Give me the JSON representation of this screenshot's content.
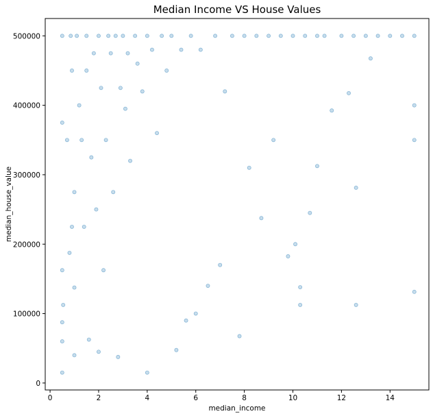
{
  "chart_data": {
    "type": "scatter",
    "title": "Median Income VS House Values",
    "xlabel": "median_income",
    "ylabel": "median_house_value",
    "xlim": [
      -0.2,
      15.6
    ],
    "ylim": [
      -10000,
      525000
    ],
    "xticks": [
      0,
      2,
      4,
      6,
      8,
      10,
      12,
      14
    ],
    "yticks": [
      0,
      100000,
      200000,
      300000,
      400000,
      500000
    ],
    "xtick_labels": [
      "0",
      "2",
      "4",
      "6",
      "8",
      "10",
      "12",
      "14"
    ],
    "ytick_labels": [
      "0",
      "100000",
      "200000",
      "300000",
      "400000",
      "500000"
    ],
    "grid": false,
    "marker_color": "#1f77b4",
    "marker_alpha": 0.25,
    "series": [
      {
        "values": [
          [
            0.5,
            15000
          ],
          [
            0.5,
            60000
          ],
          [
            0.5,
            87500
          ],
          [
            0.5,
            162500
          ],
          [
            0.5,
            375000
          ],
          [
            0.5,
            500001
          ],
          [
            0.54,
            112500
          ],
          [
            0.7,
            350000
          ],
          [
            0.8,
            187500
          ],
          [
            0.85,
            500001
          ],
          [
            0.9,
            225000
          ],
          [
            0.9,
            450000
          ],
          [
            1.0,
            40000
          ],
          [
            1.0,
            137500
          ],
          [
            1.0,
            275000
          ],
          [
            1.1,
            500001
          ],
          [
            1.2,
            400000
          ],
          [
            1.3,
            350000
          ],
          [
            1.4,
            225000
          ],
          [
            1.5,
            450000
          ],
          [
            1.5,
            500001
          ],
          [
            1.6,
            62500
          ],
          [
            1.7,
            325000
          ],
          [
            1.8,
            475000
          ],
          [
            1.9,
            250000
          ],
          [
            2.0,
            45000
          ],
          [
            2.0,
            500001
          ],
          [
            2.1,
            425000
          ],
          [
            2.2,
            162500
          ],
          [
            2.3,
            350000
          ],
          [
            2.4,
            500001
          ],
          [
            2.5,
            475000
          ],
          [
            2.6,
            275000
          ],
          [
            2.7,
            500001
          ],
          [
            2.8,
            37500
          ],
          [
            2.9,
            425000
          ],
          [
            3.0,
            500001
          ],
          [
            3.1,
            395000
          ],
          [
            3.2,
            475000
          ],
          [
            3.3,
            320000
          ],
          [
            3.5,
            500001
          ],
          [
            3.6,
            460000
          ],
          [
            3.8,
            420000
          ],
          [
            4.0,
            15000
          ],
          [
            4.0,
            500001
          ],
          [
            4.2,
            480000
          ],
          [
            4.4,
            360000
          ],
          [
            4.6,
            500001
          ],
          [
            4.8,
            450000
          ],
          [
            5.0,
            500001
          ],
          [
            5.2,
            47500
          ],
          [
            5.4,
            480000
          ],
          [
            5.6,
            90000
          ],
          [
            5.8,
            500001
          ],
          [
            6.0,
            100000
          ],
          [
            6.2,
            480000
          ],
          [
            6.5,
            140000
          ],
          [
            6.8,
            500001
          ],
          [
            7.0,
            170000
          ],
          [
            7.2,
            420000
          ],
          [
            7.5,
            500001
          ],
          [
            7.8,
            67500
          ],
          [
            8.0,
            500001
          ],
          [
            8.2,
            310000
          ],
          [
            8.5,
            500001
          ],
          [
            8.7,
            237500
          ],
          [
            9.0,
            500001
          ],
          [
            9.2,
            350000
          ],
          [
            9.5,
            500001
          ],
          [
            9.8,
            182500
          ],
          [
            10.0,
            500001
          ],
          [
            10.1,
            200000
          ],
          [
            10.3,
            112500
          ],
          [
            10.3,
            138000
          ],
          [
            10.5,
            500001
          ],
          [
            10.7,
            245000
          ],
          [
            11.0,
            500001
          ],
          [
            11.0,
            312500
          ],
          [
            11.3,
            500001
          ],
          [
            11.6,
            392500
          ],
          [
            12.0,
            500001
          ],
          [
            12.3,
            417500
          ],
          [
            12.5,
            500001
          ],
          [
            12.6,
            112500
          ],
          [
            12.6,
            281250
          ],
          [
            13.0,
            500001
          ],
          [
            13.2,
            467500
          ],
          [
            13.5,
            500001
          ],
          [
            14.0,
            500001
          ],
          [
            14.5,
            500001
          ],
          [
            15.0,
            500001
          ],
          [
            15.0,
            400000
          ],
          [
            15.0,
            350000
          ],
          [
            15.0,
            131300
          ]
        ]
      }
    ]
  }
}
